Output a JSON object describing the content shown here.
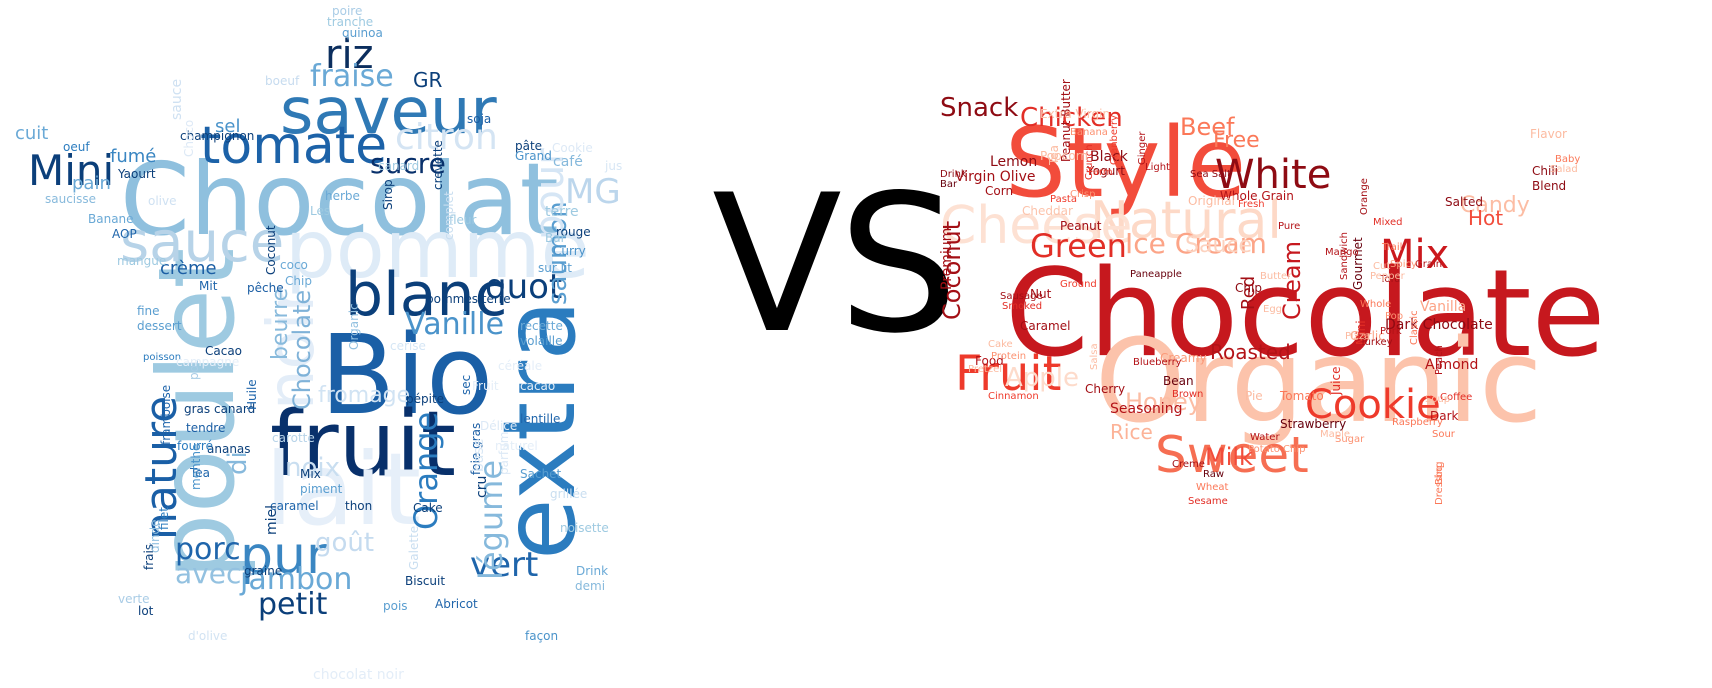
{
  "separator": "VS",
  "colors": {
    "french_scale": "Blues",
    "us_scale": "Reds"
  },
  "french_words": [
    "Chocolat",
    "Bio",
    "fruit",
    "saveur",
    "tomate",
    "pomme",
    "lait",
    "poulet",
    "sauce",
    "blanc",
    "riz",
    "extra",
    "pur",
    "noir",
    "fraise",
    "citron",
    "sucre",
    "Mini",
    "nature",
    "Vanille",
    "quot",
    "saumon",
    "jambon",
    "petit",
    "porc",
    "avec",
    "vert",
    "légume",
    "Orange",
    "MG",
    "goût",
    "di",
    "noix",
    "beurre",
    "Chocolate",
    "GR",
    "pour",
    "fromage",
    "crème",
    "cuit",
    "fumé",
    "pain",
    "sel",
    "sauce",
    "Yaourt",
    "champignon",
    "Grand",
    "café",
    "jus",
    "Curry",
    "rouge",
    "sur lit",
    "pâte",
    "soja",
    "poire",
    "tranche",
    "quinoa",
    "boeuf",
    "oeuf",
    "saucisse",
    "Banane",
    "AOP",
    "olive",
    "mangue",
    "fine",
    "dessert",
    "poisson",
    "Mit",
    "pêche",
    "Cacao",
    "Coconut",
    "Organic",
    "pommes terre",
    "coco",
    "Chip",
    "canard",
    "Sirop",
    "crevette",
    "herbe",
    "Les",
    "terre",
    "Bar",
    "fleur",
    "recette",
    "volaille",
    "pépite",
    "sec",
    "lentille",
    "gras canard",
    "tendre",
    "ananas",
    "fourré",
    "framboise",
    "Tea",
    "pot",
    "Huile",
    "carotte",
    "caramel",
    "miel",
    "Mix",
    "piment",
    "thon",
    "Cake",
    "foie gras",
    "cru",
    "Sachet",
    "grillée",
    "noisette",
    "Drink",
    "demi",
    "façon",
    "Biscuit",
    "pois",
    "Abricot",
    "graine",
    "lot",
    "verte",
    "frais",
    "dinde",
    "filet",
    "menthe",
    "d'olive",
    "chocolat noir",
    "Cookie",
    "Choco",
    "complet",
    "parfum",
    "Galette",
    "base",
    "cerise",
    "campagne",
    "naturel",
    "Délice",
    "céréale",
    "Fruit",
    "cacao",
    "soupe",
    "huile",
    "gras"
  ],
  "us_words": [
    "Chocolate",
    "Organic",
    "Style",
    "Natural",
    "Cheese",
    "Sweet",
    "Fruit",
    "Cookie",
    "White",
    "Mix",
    "Green",
    "Ice Cream",
    "Snack",
    "Chicken",
    "Beef",
    "Free",
    "Cream",
    "Coconut",
    "Honey",
    "Apple",
    "Roasted",
    "Sauce",
    "Candy",
    "Hot",
    "Milk",
    "Rice",
    "Red",
    "Dark Chocolate",
    "Premium",
    "Lemon",
    "Black",
    "Yogurt",
    "Virgin Olive",
    "Peanut Butter",
    "Tea",
    "Corn",
    "Nut",
    "Caramel",
    "Food",
    "Pretzel",
    "Cherry",
    "Seasoning",
    "Bean",
    "Tomato",
    "Strawberry",
    "Chip",
    "Creamy",
    "Garlic",
    "Almond",
    "Vanilla",
    "Salted",
    "Chili",
    "Blend",
    "Mini",
    "Gourmet",
    "Juice",
    "Whole Grain",
    "Original",
    "Peanut",
    "Cheddar",
    "Pasta",
    "Crisp",
    "Crunch",
    "Cranberry",
    "Ginger",
    "Light",
    "Sea Salt",
    "Farm",
    "Fresh",
    "Pure",
    "Orange",
    "Mixed",
    "Baby",
    "Salad",
    "Grain",
    "Spicy",
    "Trail",
    "Pork",
    "Classic",
    "Peach",
    "Coffee",
    "Dark",
    "Sour",
    "Bbq",
    "Dressing",
    "Raspberry",
    "Turkey",
    "Sugar",
    "Water",
    "Potato Chip",
    "Brown",
    "Creme",
    "Raw",
    "Wheat",
    "Sesame",
    "Cinnamon",
    "Salsa",
    "Blueberry",
    "Sausage",
    "Smoked",
    "Protein",
    "Cake",
    "Drink",
    "Bar",
    "Popcorn",
    "Banana",
    "Extra Virgin",
    "Mango",
    "Ground",
    "Paneapple",
    "Pizza",
    "Pop",
    "Cut",
    "Soup",
    "Sandwich",
    "Tofu",
    "Whole",
    "Flavor",
    "Pepper",
    "Butter",
    "Pie",
    "Egg",
    "Maple"
  ]
}
